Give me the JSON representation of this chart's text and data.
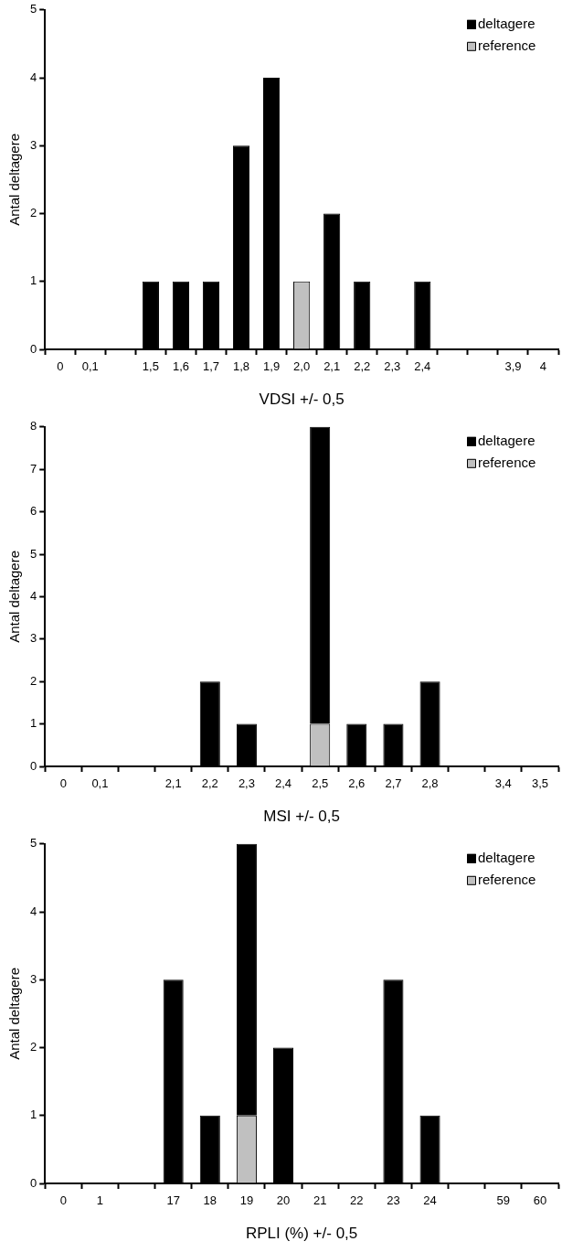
{
  "chart_data": [
    {
      "type": "bar",
      "stacked": true,
      "xlabel": "VDSI +/- 0,5",
      "ylabel": "Antal deltagere",
      "categories": [
        "0",
        "0,1",
        null,
        "1,5",
        "1,6",
        "1,7",
        "1,8",
        "1,9",
        "2,0",
        "2,1",
        "2,2",
        "2,3",
        "2,4",
        null,
        null,
        "3,9",
        "4"
      ],
      "ylim": [
        0,
        5
      ],
      "yticks": [
        0,
        1,
        2,
        3,
        4,
        5
      ],
      "grid": false,
      "legend": "top right",
      "series": [
        {
          "name": "reference",
          "color": "#c0c0c0",
          "values": [
            0,
            0,
            0,
            0,
            0,
            0,
            0,
            0,
            1,
            0,
            0,
            0,
            0,
            0,
            0,
            0,
            0
          ]
        },
        {
          "name": "deltagere",
          "color": "#000000",
          "values": [
            0,
            0,
            0,
            1,
            1,
            1,
            3,
            4,
            0,
            2,
            1,
            0,
            1,
            0,
            0,
            0,
            0
          ]
        }
      ]
    },
    {
      "type": "bar",
      "stacked": true,
      "xlabel": "MSI +/- 0,5",
      "ylabel": "Antal deltagere",
      "categories": [
        "0",
        "0,1",
        null,
        "2,1",
        "2,2",
        "2,3",
        "2,4",
        "2,5",
        "2,6",
        "2,7",
        "2,8",
        null,
        "3,4",
        "3,5"
      ],
      "ylim": [
        0,
        8
      ],
      "yticks": [
        0,
        1,
        2,
        3,
        4,
        5,
        6,
        7,
        8
      ],
      "grid": false,
      "legend": "top right",
      "series": [
        {
          "name": "reference",
          "color": "#c0c0c0",
          "values": [
            0,
            0,
            0,
            0,
            0,
            0,
            0,
            1,
            0,
            0,
            0,
            0,
            0,
            0
          ]
        },
        {
          "name": "deltagere",
          "color": "#000000",
          "values": [
            0,
            0,
            0,
            0,
            2,
            1,
            0,
            7,
            1,
            1,
            2,
            0,
            0,
            0
          ]
        }
      ]
    },
    {
      "type": "bar",
      "stacked": true,
      "xlabel": "RPLI (%) +/- 0,5",
      "ylabel": "Antal deltagere",
      "categories": [
        "0",
        "1",
        null,
        "17",
        "18",
        "19",
        "20",
        "21",
        "22",
        "23",
        "24",
        null,
        "59",
        "60"
      ],
      "ylim": [
        0,
        5
      ],
      "yticks": [
        0,
        1,
        2,
        3,
        4,
        5
      ],
      "grid": false,
      "legend": "top right",
      "series": [
        {
          "name": "reference",
          "color": "#c0c0c0",
          "values": [
            0,
            0,
            0,
            0,
            0,
            1,
            0,
            0,
            0,
            0,
            0,
            0,
            0,
            0
          ]
        },
        {
          "name": "deltagere",
          "color": "#000000",
          "values": [
            0,
            0,
            0,
            3,
            1,
            4,
            2,
            0,
            0,
            3,
            1,
            0,
            0,
            0
          ]
        }
      ]
    }
  ]
}
